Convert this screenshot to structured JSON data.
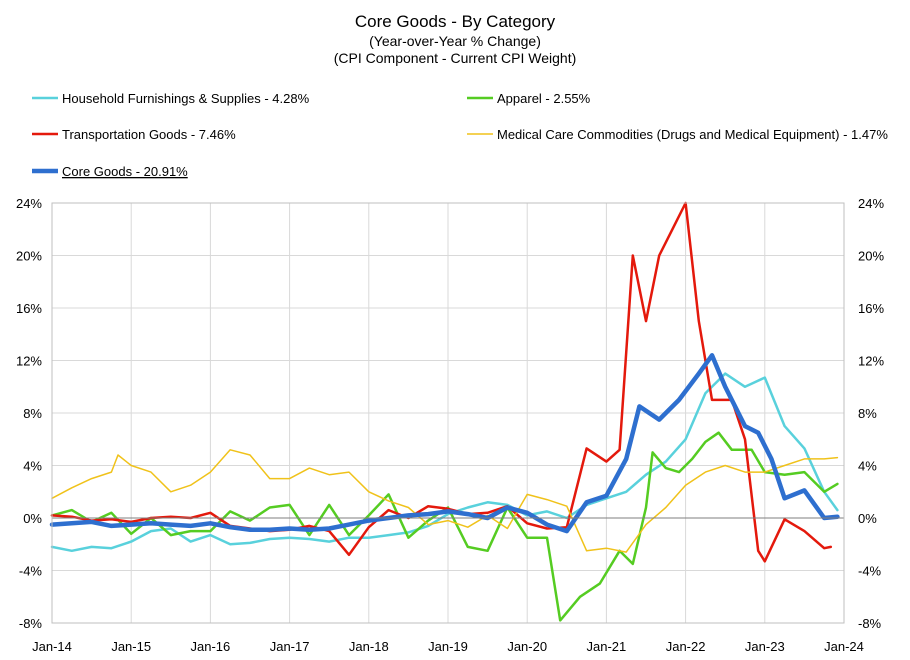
{
  "chart_data": {
    "type": "line",
    "title": "Core Goods - By Category",
    "subtitle1": "(Year-over-Year % Change)",
    "subtitle2": "(CPI Component - Current CPI Weight)",
    "x_ticks": [
      "Jan-14",
      "Jan-15",
      "Jan-16",
      "Jan-17",
      "Jan-18",
      "Jan-19",
      "Jan-20",
      "Jan-21",
      "Jan-22",
      "Jan-23",
      "Jan-24"
    ],
    "y_ticks": [
      "24%",
      "20%",
      "16%",
      "12%",
      "8%",
      "4%",
      "0%",
      "-4%",
      "-8%"
    ],
    "y_tick_values": [
      24,
      20,
      16,
      12,
      8,
      4,
      0,
      -4,
      -8
    ],
    "ylim": [
      -8,
      24
    ],
    "xlim_months": [
      0,
      120
    ],
    "legend_position": "top",
    "series": [
      {
        "name": "Household Furnishings & Supplies - 4.28%",
        "color": "#59d1dc",
        "width": 2.5,
        "points": [
          [
            0,
            -2.2
          ],
          [
            3,
            -2.5
          ],
          [
            6,
            -2.2
          ],
          [
            9,
            -2.3
          ],
          [
            12,
            -1.8
          ],
          [
            15,
            -1.0
          ],
          [
            18,
            -0.8
          ],
          [
            21,
            -1.8
          ],
          [
            24,
            -1.3
          ],
          [
            27,
            -2.0
          ],
          [
            30,
            -1.9
          ],
          [
            33,
            -1.6
          ],
          [
            36,
            -1.5
          ],
          [
            39,
            -1.6
          ],
          [
            42,
            -1.8
          ],
          [
            45,
            -1.5
          ],
          [
            48,
            -1.5
          ],
          [
            51,
            -1.3
          ],
          [
            54,
            -1.1
          ],
          [
            57,
            -0.6
          ],
          [
            60,
            0.3
          ],
          [
            63,
            0.8
          ],
          [
            66,
            1.2
          ],
          [
            69,
            1.0
          ],
          [
            72,
            0.2
          ],
          [
            75,
            0.5
          ],
          [
            78,
            0.0
          ],
          [
            81,
            1.0
          ],
          [
            84,
            1.5
          ],
          [
            87,
            2.0
          ],
          [
            90,
            3.3
          ],
          [
            93,
            4.3
          ],
          [
            96,
            6.0
          ],
          [
            99,
            9.5
          ],
          [
            102,
            11.0
          ],
          [
            105,
            10.0
          ],
          [
            108,
            10.7
          ],
          [
            111,
            7.0
          ],
          [
            114,
            5.3
          ],
          [
            117,
            2.0
          ],
          [
            119,
            0.6
          ]
        ]
      },
      {
        "name": "Apparel - 2.55%",
        "color": "#55cc22",
        "width": 2.5,
        "points": [
          [
            0,
            0.2
          ],
          [
            3,
            0.6
          ],
          [
            6,
            -0.3
          ],
          [
            9,
            0.4
          ],
          [
            12,
            -1.2
          ],
          [
            15,
            0.0
          ],
          [
            18,
            -1.3
          ],
          [
            21,
            -1.0
          ],
          [
            24,
            -1.0
          ],
          [
            27,
            0.5
          ],
          [
            30,
            -0.2
          ],
          [
            33,
            0.8
          ],
          [
            36,
            1.0
          ],
          [
            39,
            -1.3
          ],
          [
            42,
            1.0
          ],
          [
            45,
            -1.3
          ],
          [
            48,
            0.2
          ],
          [
            51,
            1.8
          ],
          [
            54,
            -1.5
          ],
          [
            57,
            -0.2
          ],
          [
            60,
            0.8
          ],
          [
            63,
            -2.2
          ],
          [
            66,
            -2.5
          ],
          [
            69,
            0.8
          ],
          [
            72,
            -1.5
          ],
          [
            75,
            -1.5
          ],
          [
            77,
            -7.8
          ],
          [
            80,
            -6.0
          ],
          [
            83,
            -5.0
          ],
          [
            86,
            -2.5
          ],
          [
            88,
            -3.5
          ],
          [
            90,
            0.8
          ],
          [
            91,
            5.0
          ],
          [
            93,
            3.8
          ],
          [
            95,
            3.5
          ],
          [
            97,
            4.5
          ],
          [
            99,
            5.8
          ],
          [
            101,
            6.5
          ],
          [
            103,
            5.2
          ],
          [
            106,
            5.2
          ],
          [
            108,
            3.5
          ],
          [
            111,
            3.3
          ],
          [
            114,
            3.5
          ],
          [
            117,
            2.0
          ],
          [
            119,
            2.6
          ]
        ]
      },
      {
        "name": "Transportation Goods - 7.46%",
        "color": "#e4190c",
        "width": 2.5,
        "points": [
          [
            0,
            0.2
          ],
          [
            3,
            0.1
          ],
          [
            6,
            -0.2
          ],
          [
            9,
            -0.1
          ],
          [
            12,
            -0.3
          ],
          [
            15,
            0.0
          ],
          [
            18,
            0.1
          ],
          [
            21,
            0.0
          ],
          [
            24,
            0.4
          ],
          [
            27,
            -0.6
          ],
          [
            30,
            -0.8
          ],
          [
            33,
            -1.0
          ],
          [
            36,
            -0.9
          ],
          [
            39,
            -0.6
          ],
          [
            42,
            -1.0
          ],
          [
            45,
            -2.8
          ],
          [
            48,
            -0.7
          ],
          [
            51,
            0.6
          ],
          [
            54,
            0.0
          ],
          [
            57,
            0.9
          ],
          [
            60,
            0.7
          ],
          [
            63,
            0.3
          ],
          [
            66,
            0.4
          ],
          [
            69,
            0.9
          ],
          [
            72,
            -0.4
          ],
          [
            75,
            -0.8
          ],
          [
            78,
            -0.7
          ],
          [
            81,
            5.3
          ],
          [
            84,
            4.3
          ],
          [
            86,
            5.2
          ],
          [
            88,
            20.0
          ],
          [
            90,
            15.0
          ],
          [
            92,
            20.0
          ],
          [
            94,
            22.0
          ],
          [
            96,
            24.0
          ],
          [
            98,
            15.0
          ],
          [
            100,
            9.0
          ],
          [
            103,
            9.0
          ],
          [
            105,
            6.0
          ],
          [
            107,
            -2.5
          ],
          [
            108,
            -3.3
          ],
          [
            111,
            -0.1
          ],
          [
            114,
            -1.0
          ],
          [
            117,
            -2.3
          ],
          [
            118,
            -2.2
          ]
        ]
      },
      {
        "name": "Medical Care Commodities (Drugs and Medical Equipment) - 1.47%",
        "color": "#f0c21a",
        "width": 1.5,
        "points": [
          [
            0,
            1.5
          ],
          [
            3,
            2.3
          ],
          [
            6,
            3.0
          ],
          [
            9,
            3.5
          ],
          [
            10,
            4.8
          ],
          [
            12,
            4.0
          ],
          [
            15,
            3.5
          ],
          [
            18,
            2.0
          ],
          [
            21,
            2.5
          ],
          [
            24,
            3.5
          ],
          [
            27,
            5.2
          ],
          [
            30,
            4.8
          ],
          [
            33,
            3.0
          ],
          [
            36,
            3.0
          ],
          [
            39,
            3.8
          ],
          [
            42,
            3.3
          ],
          [
            45,
            3.5
          ],
          [
            48,
            2.0
          ],
          [
            51,
            1.3
          ],
          [
            54,
            0.8
          ],
          [
            57,
            -0.5
          ],
          [
            60,
            -0.2
          ],
          [
            63,
            -0.7
          ],
          [
            66,
            0.2
          ],
          [
            69,
            -0.8
          ],
          [
            72,
            1.8
          ],
          [
            75,
            1.4
          ],
          [
            78,
            0.9
          ],
          [
            81,
            -2.5
          ],
          [
            84,
            -2.3
          ],
          [
            87,
            -2.6
          ],
          [
            90,
            -0.5
          ],
          [
            93,
            0.8
          ],
          [
            96,
            2.5
          ],
          [
            99,
            3.5
          ],
          [
            102,
            4.0
          ],
          [
            105,
            3.5
          ],
          [
            108,
            3.5
          ],
          [
            111,
            4.0
          ],
          [
            114,
            4.5
          ],
          [
            117,
            4.5
          ],
          [
            119,
            4.6
          ]
        ]
      },
      {
        "name": "Core Goods - 20.91%",
        "color": "#2e6fcf",
        "width": 4.5,
        "points": [
          [
            0,
            -0.5
          ],
          [
            3,
            -0.4
          ],
          [
            6,
            -0.3
          ],
          [
            9,
            -0.6
          ],
          [
            12,
            -0.5
          ],
          [
            15,
            -0.4
          ],
          [
            18,
            -0.5
          ],
          [
            21,
            -0.6
          ],
          [
            24,
            -0.4
          ],
          [
            27,
            -0.7
          ],
          [
            30,
            -0.9
          ],
          [
            33,
            -0.9
          ],
          [
            36,
            -0.8
          ],
          [
            39,
            -0.9
          ],
          [
            42,
            -0.8
          ],
          [
            45,
            -0.5
          ],
          [
            48,
            -0.2
          ],
          [
            51,
            0.0
          ],
          [
            54,
            0.2
          ],
          [
            57,
            0.3
          ],
          [
            60,
            0.5
          ],
          [
            63,
            0.3
          ],
          [
            66,
            0.0
          ],
          [
            69,
            0.8
          ],
          [
            72,
            0.4
          ],
          [
            75,
            -0.5
          ],
          [
            78,
            -1.0
          ],
          [
            81,
            1.2
          ],
          [
            84,
            1.7
          ],
          [
            87,
            4.5
          ],
          [
            89,
            8.5
          ],
          [
            92,
            7.5
          ],
          [
            95,
            9.0
          ],
          [
            98,
            11.0
          ],
          [
            100,
            12.4
          ],
          [
            102,
            10.0
          ],
          [
            105,
            7.0
          ],
          [
            107,
            6.5
          ],
          [
            109,
            4.5
          ],
          [
            111,
            1.5
          ],
          [
            114,
            2.1
          ],
          [
            117,
            0.0
          ],
          [
            119,
            0.1
          ]
        ]
      }
    ]
  }
}
